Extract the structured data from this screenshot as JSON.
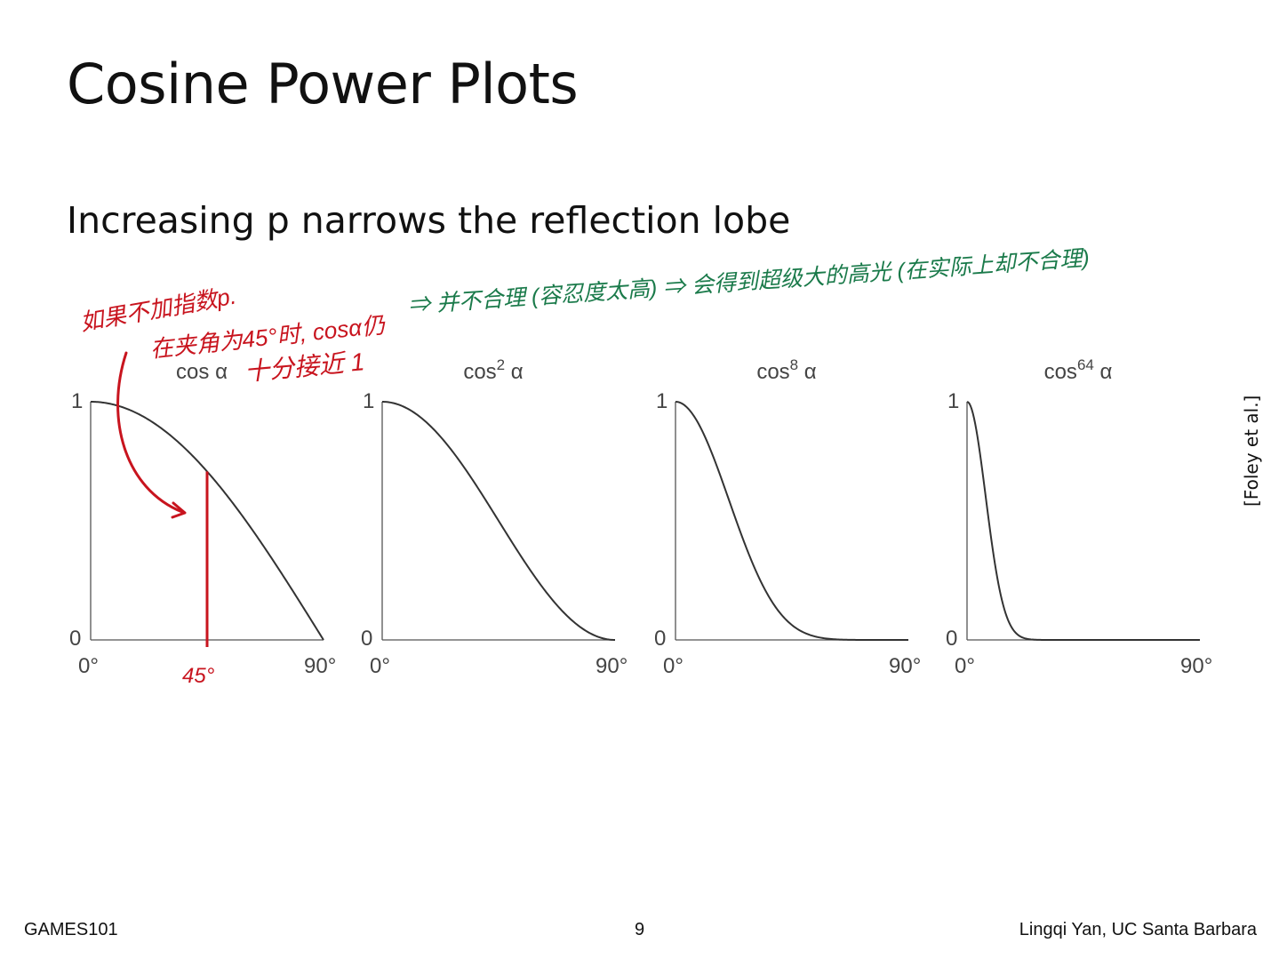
{
  "slide": {
    "title": "Cosine Power Plots",
    "bullet": "Increasing p narrows the reflection lobe",
    "credit": "[Foley et al.]",
    "footer_left": "GAMES101",
    "page_number": "9",
    "footer_right": "Lingqi Yan, UC Santa Barbara"
  },
  "chart_data": [
    {
      "type": "line",
      "title_base": "cos",
      "exponent": "",
      "title_var": "α",
      "power": 1,
      "x_range_deg": [
        0,
        90
      ],
      "ylim": [
        0,
        1
      ],
      "xtick_labels": [
        "0°",
        "90°"
      ],
      "ytick_labels": [
        "0",
        "1"
      ],
      "marker": {
        "label": "45°",
        "x_deg": 45
      }
    },
    {
      "type": "line",
      "title_base": "cos",
      "exponent": "2",
      "title_var": "α",
      "power": 2,
      "x_range_deg": [
        0,
        90
      ],
      "ylim": [
        0,
        1
      ],
      "xtick_labels": [
        "0°",
        "90°"
      ],
      "ytick_labels": [
        "0",
        "1"
      ]
    },
    {
      "type": "line",
      "title_base": "cos",
      "exponent": "8",
      "title_var": "α",
      "power": 8,
      "x_range_deg": [
        0,
        90
      ],
      "ylim": [
        0,
        1
      ],
      "xtick_labels": [
        "0°",
        "90°"
      ],
      "ytick_labels": [
        "0",
        "1"
      ]
    },
    {
      "type": "line",
      "title_base": "cos",
      "exponent": "64",
      "title_var": "α",
      "power": 64,
      "x_range_deg": [
        0,
        90
      ],
      "ylim": [
        0,
        1
      ],
      "xtick_labels": [
        "0°",
        "90°"
      ],
      "ytick_labels": [
        "0",
        "1"
      ]
    }
  ],
  "annotations": {
    "red_color": "#c8141e",
    "green_color": "#1a7a4a",
    "red_line1": "如果不加指数p.",
    "red_line2": "在夹角为45°时, cosα仍",
    "red_line3": "十分接近 1",
    "green_text": "⇒ 并不合理 (容忍度太高) ⇒ 会得到超级大的高光 (在实际上却不合理)"
  }
}
